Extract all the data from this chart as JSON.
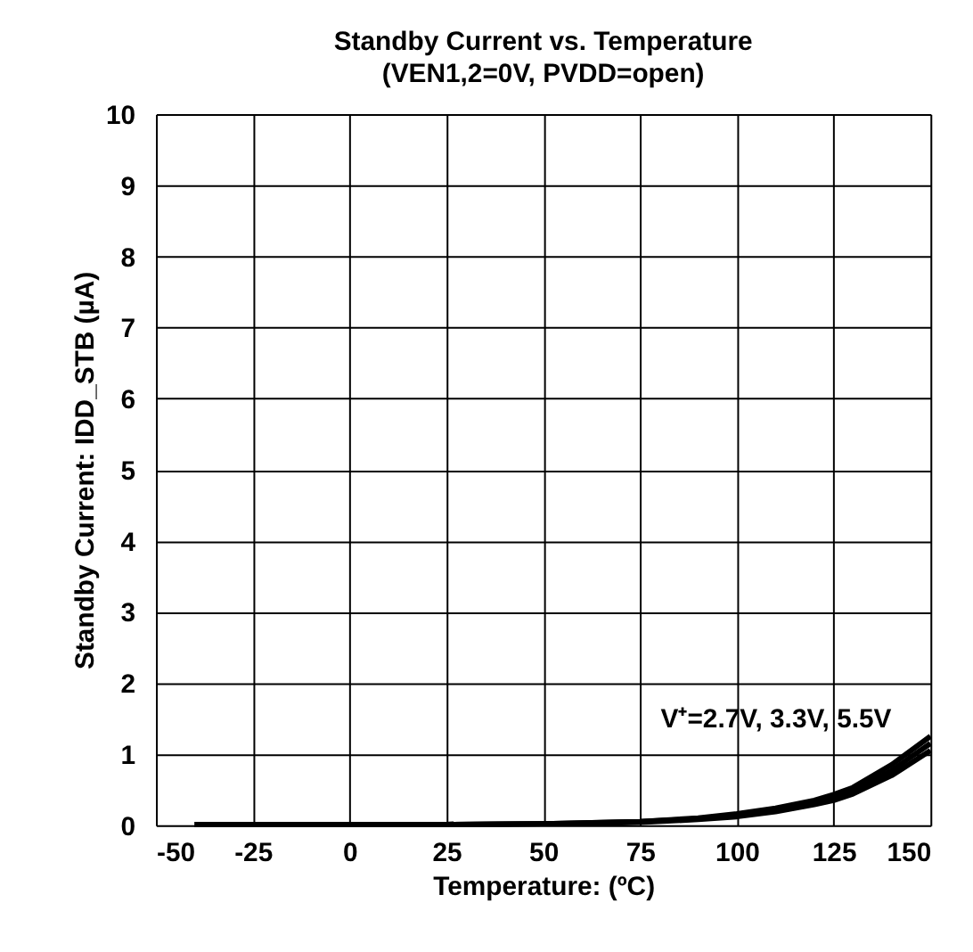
{
  "chart_data": {
    "type": "line",
    "title": "Standby Current vs. Temperature",
    "subtitle": "(VEN1,2=0V, PVDD=open)",
    "xlabel": "Temperature: (ºC)",
    "ylabel": "Standby Current: IDD_STB  (µA)",
    "x": [
      -40,
      -25,
      0,
      25,
      50,
      60,
      75,
      90,
      100,
      110,
      120,
      125,
      130,
      140,
      150
    ],
    "series": [
      {
        "color": "#000000",
        "values": [
          0.01,
          0.01,
          0.01,
          0.01,
          0.02,
          0.03,
          0.05,
          0.1,
          0.16,
          0.24,
          0.35,
          0.43,
          0.53,
          0.85,
          1.25
        ]
      },
      {
        "color": "#000000",
        "values": [
          0.01,
          0.01,
          0.01,
          0.01,
          0.02,
          0.03,
          0.05,
          0.09,
          0.14,
          0.21,
          0.32,
          0.39,
          0.48,
          0.77,
          1.15
        ]
      },
      {
        "color": "#000000",
        "values": [
          0.01,
          0.01,
          0.01,
          0.01,
          0.02,
          0.02,
          0.04,
          0.08,
          0.12,
          0.19,
          0.29,
          0.35,
          0.44,
          0.7,
          1.05
        ]
      }
    ],
    "xlim": [
      -50,
      150
    ],
    "xticks": [
      -50,
      -25,
      0,
      25,
      50,
      75,
      100,
      125,
      150
    ],
    "ylim": [
      0,
      10
    ],
    "yticks": [
      0,
      1,
      2,
      3,
      4,
      5,
      6,
      7,
      8,
      9,
      10
    ],
    "grid": true,
    "legend": false,
    "marker": "none",
    "line_style": "solid",
    "annotations": [
      "V⁺=2.7V, 3.3V, 5.5V"
    ]
  }
}
